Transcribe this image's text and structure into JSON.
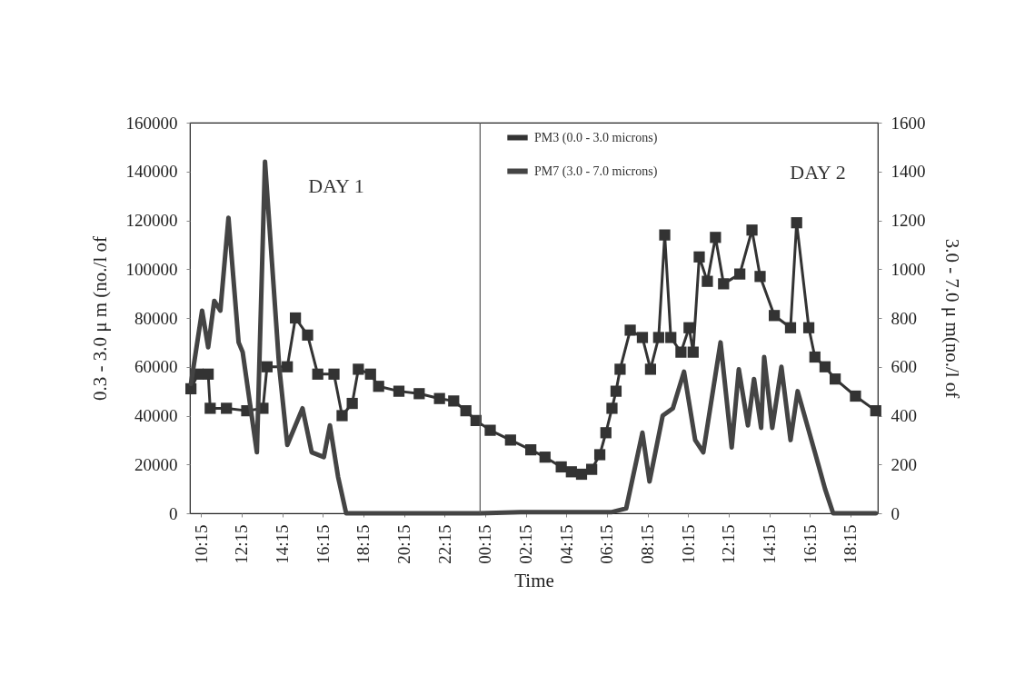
{
  "chart_data": {
    "type": "line",
    "xlabel": "Time",
    "ylabel": "0.3 - 3.0  μ m (no./l of",
    "y2label": "3.0 - 7.0  μ m(no./l of",
    "xlim": [
      "--01-01T09:42",
      "--01-02T19:36"
    ],
    "xticks": [
      {
        "value": "--01-01T10:15",
        "label": "10:15"
      },
      {
        "value": "--01-01T12:15",
        "label": "12:15"
      },
      {
        "value": "--01-01T14:15",
        "label": "14:15"
      },
      {
        "value": "--01-01T16:15",
        "label": "16:15"
      },
      {
        "value": "--01-01T18:15",
        "label": "18:15"
      },
      {
        "value": "--01-01T20:15",
        "label": "20:15"
      },
      {
        "value": "--01-01T22:15",
        "label": "22:15"
      },
      {
        "value": "--01-02T00:15",
        "label": "00:15"
      },
      {
        "value": "--01-02T02:15",
        "label": "02:15"
      },
      {
        "value": "--01-02T04:15",
        "label": "04:15"
      },
      {
        "value": "--01-02T06:15",
        "label": "06:15"
      },
      {
        "value": "--01-02T08:15",
        "label": "08:15"
      },
      {
        "value": "--01-02T10:15",
        "label": "10:15"
      },
      {
        "value": "--01-02T12:15",
        "label": "12:15"
      },
      {
        "value": "--01-02T14:15",
        "label": "14:15"
      },
      {
        "value": "--01-02T16:15",
        "label": "16:15"
      },
      {
        "value": "--01-02T18:15",
        "label": "18:15"
      }
    ],
    "ylim": [
      0,
      160000
    ],
    "yticks": [
      0,
      20000,
      40000,
      60000,
      80000,
      100000,
      120000,
      140000,
      160000
    ],
    "y2lim": [
      0,
      1600
    ],
    "y2ticks": [
      0,
      200,
      400,
      600,
      800,
      1000,
      1200,
      1400,
      1600
    ],
    "legend": "top",
    "series": [
      {
        "name": "PM3 (0.0 - 3.0 microns)",
        "color": "#333333",
        "marker": "square",
        "x": [
          "--01-01T09:45",
          "--01-01T10:06",
          "--01-01T10:36",
          "--01-01T10:42",
          "--01-01T11:30",
          "--01-01T12:30",
          "--01-01T13:18",
          "--01-01T13:30",
          "--01-01T14:30",
          "--01-01T14:54",
          "--01-01T15:30",
          "--01-01T16:00",
          "--01-01T16:48",
          "--01-01T17:12",
          "--01-01T17:42",
          "--01-01T18:00",
          "--01-01T18:36",
          "--01-01T19:00",
          "--01-01T20:00",
          "--01-01T21:00",
          "--01-01T22:00",
          "--01-01T22:42",
          "--01-01T23:18",
          "--01-01T23:48",
          "--01-02T00:30",
          "--01-02T01:30",
          "--01-02T02:30",
          "--01-02T03:12",
          "--01-02T04:00",
          "--01-02T04:30",
          "--01-02T05:00",
          "--01-02T05:30",
          "--01-02T05:54",
          "--01-02T06:12",
          "--01-02T06:30",
          "--01-02T06:42",
          "--01-02T06:54",
          "--01-02T07:24",
          "--01-02T08:00",
          "--01-02T08:24",
          "--01-02T08:48",
          "--01-02T09:06",
          "--01-02T09:24",
          "--01-02T09:54",
          "--01-02T10:18",
          "--01-02T10:30",
          "--01-02T10:48",
          "--01-02T11:12",
          "--01-02T11:36",
          "--01-02T12:00",
          "--01-02T12:48",
          "--01-02T13:24",
          "--01-02T13:48",
          "--01-02T14:30",
          "--01-02T15:18",
          "--01-02T15:36",
          "--01-02T16:12",
          "--01-02T16:30",
          "--01-02T17:00",
          "--01-02T17:30",
          "--01-02T18:30",
          "--01-02T19:30"
        ],
        "values": [
          51000,
          57000,
          57000,
          43000,
          43000,
          42000,
          43000,
          60000,
          60000,
          80000,
          73000,
          57000,
          57000,
          40000,
          45000,
          59000,
          57000,
          52000,
          50000,
          49000,
          47000,
          46000,
          42000,
          38000,
          34000,
          30000,
          26000,
          23000,
          19000,
          17000,
          16000,
          18000,
          24000,
          33000,
          43000,
          50000,
          59000,
          75000,
          72000,
          59000,
          72000,
          114000,
          72000,
          66000,
          76000,
          66000,
          105000,
          95000,
          113000,
          94000,
          98000,
          116000,
          97000,
          81000,
          76000,
          119000,
          76000,
          64000,
          60000,
          55000,
          48000,
          42000
        ]
      },
      {
        "name": "PM7 (3.0 - 7.0 microns)",
        "color": "#444444",
        "axis": "y2",
        "marker": "none",
        "x": [
          "--01-01T09:45",
          "--01-01T10:18",
          "--01-01T10:36",
          "--01-01T10:54",
          "--01-01T11:12",
          "--01-01T11:36",
          "--01-01T12:06",
          "--01-01T12:18",
          "--01-01T13:00",
          "--01-01T13:24",
          "--01-01T14:06",
          "--01-01T14:30",
          "--01-01T15:15",
          "--01-01T15:42",
          "--01-01T16:18",
          "--01-01T16:36",
          "--01-01T17:00",
          "--01-01T17:24",
          "--01-01T20:00",
          "--01-02T00:00",
          "--01-02T02:00",
          "--01-02T04:00",
          "--01-02T06:30",
          "--01-02T07:12",
          "--01-02T08:00",
          "--01-02T08:21",
          "--01-02T09:00",
          "--01-02T09:30",
          "--01-02T10:03",
          "--01-02T10:36",
          "--01-02T11:00",
          "--01-02T11:51",
          "--01-02T12:24",
          "--01-02T12:45",
          "--01-02T13:12",
          "--01-02T13:30",
          "--01-02T13:51",
          "--01-02T14:00",
          "--01-02T14:24",
          "--01-02T14:51",
          "--01-02T15:18",
          "--01-02T15:39",
          "--01-02T16:30",
          "--01-02T17:00",
          "--01-02T17:24",
          "--01-02T19:30"
        ],
        "values": [
          530,
          830,
          680,
          870,
          830,
          1210,
          700,
          660,
          250,
          1440,
          600,
          280,
          430,
          250,
          230,
          360,
          150,
          0,
          0,
          0,
          5,
          5,
          5,
          20,
          330,
          130,
          400,
          430,
          580,
          300,
          250,
          700,
          270,
          590,
          360,
          550,
          350,
          640,
          350,
          600,
          300,
          500,
          250,
          100,
          0,
          0
        ]
      }
    ],
    "ref_lines": [
      {
        "axis": "x",
        "value": "--01-02T00:00",
        "color": "#555555"
      }
    ],
    "annotations": [
      "DAY 1",
      "DAY 2"
    ]
  }
}
